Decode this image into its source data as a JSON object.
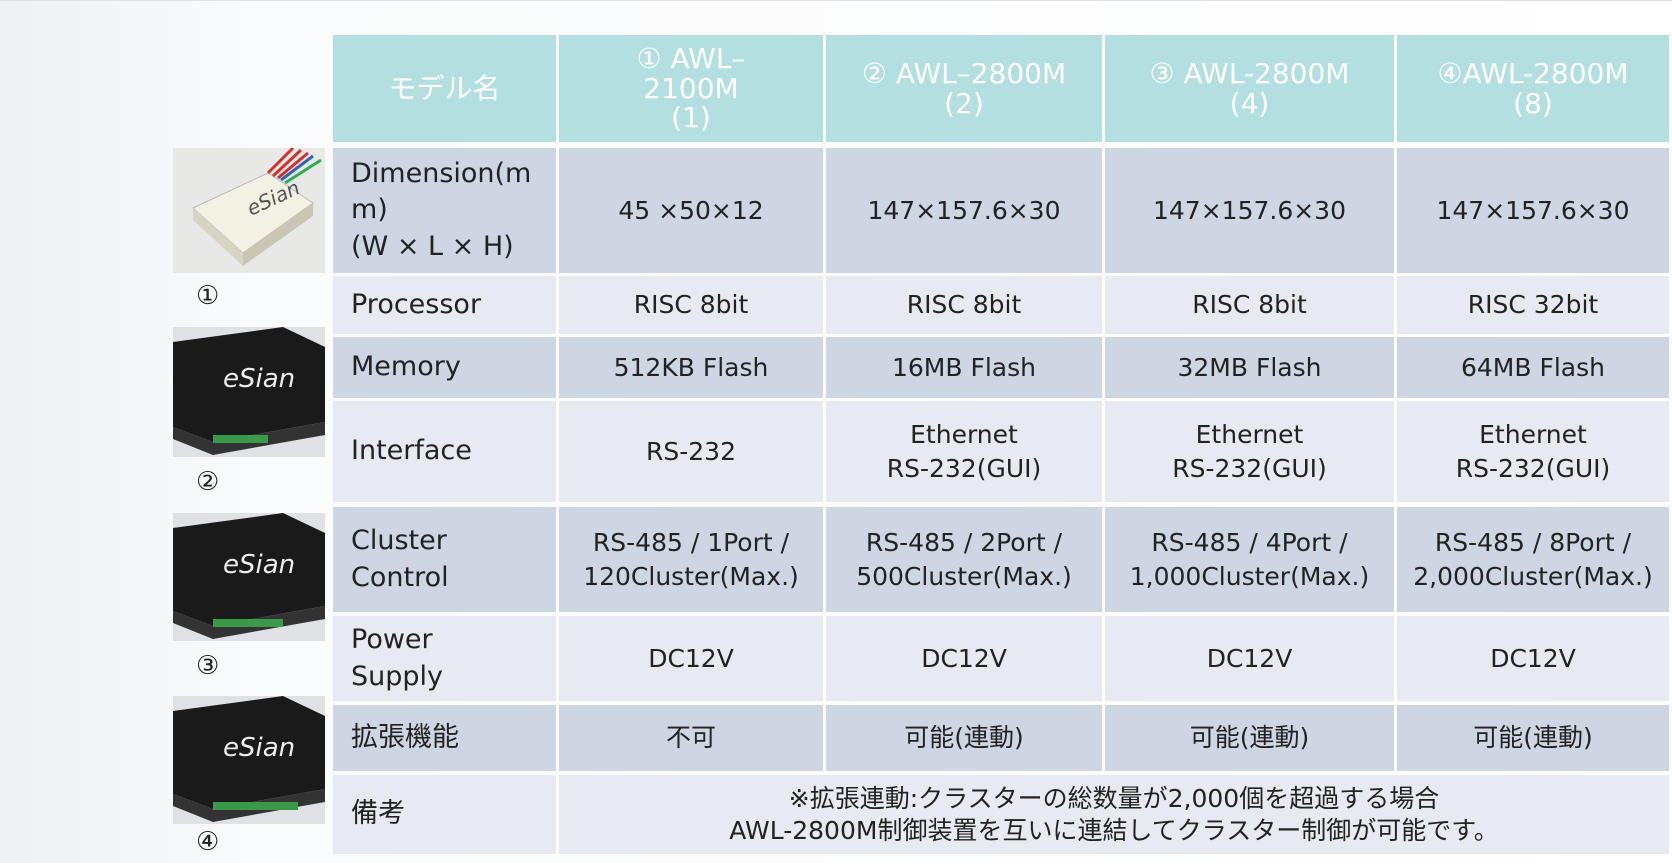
{
  "header": {
    "cells": [
      [
        "モデル名"
      ],
      [
        "① AWL–",
        "2100M",
        "(1)"
      ],
      [
        "② AWL–2800M",
        "(2)"
      ],
      [
        "③ AWL-2800M",
        "(4)"
      ],
      [
        "④AWL-2800M",
        "(8)"
      ]
    ]
  },
  "rows": [
    {
      "label": [
        "Dimension(m",
        "m)",
        "(W × L × H)"
      ],
      "cells": [
        [
          "45 ×50×12"
        ],
        [
          "147×157.6×30"
        ],
        [
          "147×157.6×30"
        ],
        [
          "147×157.6×30"
        ]
      ]
    },
    {
      "label": [
        "Processor"
      ],
      "cells": [
        [
          "RISC 8bit"
        ],
        [
          "RISC 8bit"
        ],
        [
          "RISC 8bit"
        ],
        [
          "RISC 32bit"
        ]
      ]
    },
    {
      "label": [
        "Memory"
      ],
      "cells": [
        [
          "512KB Flash"
        ],
        [
          "16MB Flash"
        ],
        [
          "32MB Flash"
        ],
        [
          "64MB Flash"
        ]
      ]
    },
    {
      "label": [
        "Interface"
      ],
      "cells": [
        [
          "RS-232"
        ],
        [
          "Ethernet",
          "RS-232(GUI)"
        ],
        [
          "Ethernet",
          "RS-232(GUI)"
        ],
        [
          "Ethernet",
          "RS-232(GUI)"
        ]
      ]
    },
    {
      "label": [
        "Cluster",
        "Control"
      ],
      "cells": [
        [
          "RS-485 / 1Port /",
          "120Cluster(Max.)"
        ],
        [
          "RS-485 / 2Port /",
          "500Cluster(Max.)"
        ],
        [
          "RS-485 / 4Port /",
          "1,000Cluster(Max.)"
        ],
        [
          "RS-485 / 8Port /",
          "2,000Cluster(Max.)"
        ]
      ]
    },
    {
      "label": [
        "Power",
        "Supply"
      ],
      "cells": [
        [
          "DC12V"
        ],
        [
          "DC12V"
        ],
        [
          "DC12V"
        ],
        [
          "DC12V"
        ]
      ]
    },
    {
      "label": [
        "拡張機能"
      ],
      "cells": [
        [
          "不可"
        ],
        [
          "可能(連動)"
        ],
        [
          "可能(連動)"
        ],
        [
          "可能(連動)"
        ]
      ]
    },
    {
      "label": [
        "備考"
      ],
      "cells": [
        [
          "※拡張連動:クラスターの総数量が2,000個を超過する場合",
          "AWL-2800M制御装置を互いに連結してクラスター制御が可能です。"
        ]
      ]
    }
  ],
  "images": [
    {
      "caption": "①"
    },
    {
      "caption": "②"
    },
    {
      "caption": "③"
    },
    {
      "caption": "④"
    }
  ]
}
